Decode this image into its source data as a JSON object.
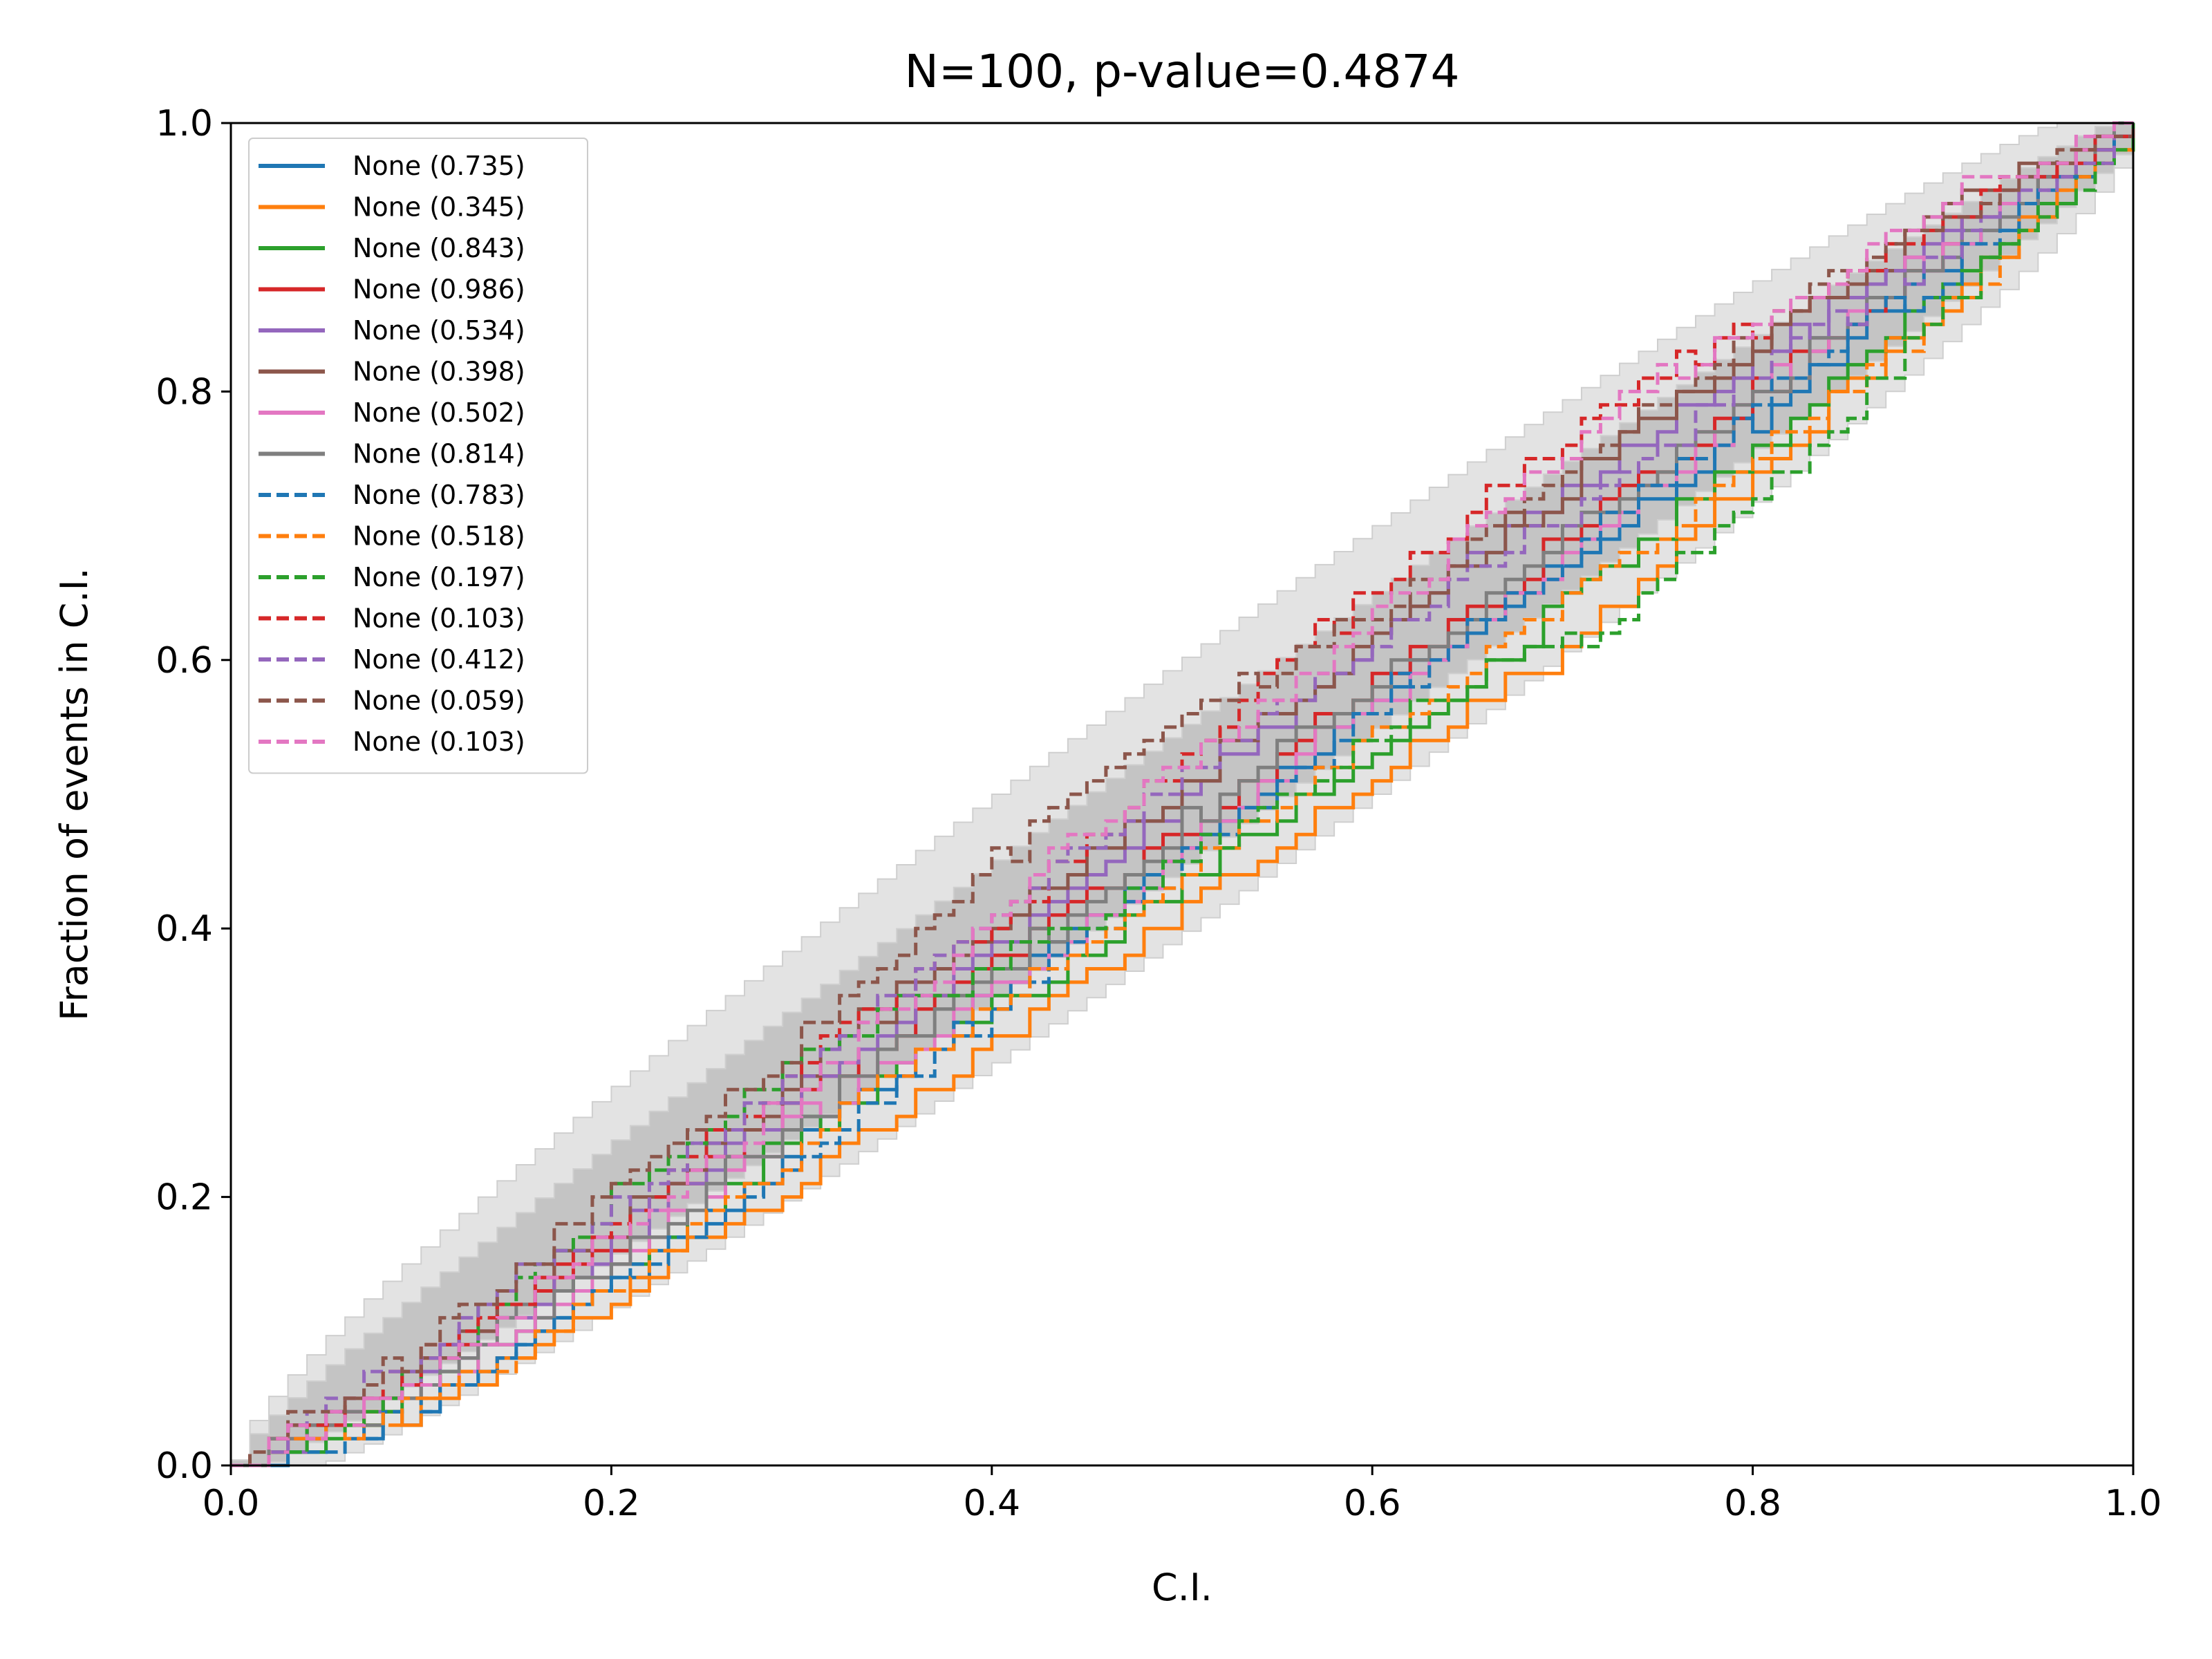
{
  "chart_data": {
    "type": "line",
    "title": "N=100, p-value=0.4874",
    "xlabel": "C.I.",
    "ylabel": "Fraction of events in C.I.",
    "xlim": [
      0,
      1
    ],
    "ylim": [
      0,
      1
    ],
    "xticks": [
      "0.0",
      "0.2",
      "0.4",
      "0.6",
      "0.8",
      "1.0"
    ],
    "yticks": [
      "0.0",
      "0.2",
      "0.4",
      "0.6",
      "0.8",
      "1.0"
    ],
    "grid": false,
    "legend_position": "top-left",
    "confidence_bands": [
      {
        "name": "1-sigma",
        "color": "#c4c4c4",
        "spread": 0.048
      },
      {
        "name": "2-sigma",
        "color": "#e3e3e3",
        "spread": 0.098
      }
    ],
    "series": [
      {
        "name": "None (0.735)",
        "color": "#1f77b4",
        "style": "solid",
        "seed": 11,
        "values": [
          0,
          0.04,
          0.12,
          0.21,
          0.31,
          0.41,
          0.51,
          0.61,
          0.7,
          0.8,
          0.91,
          1.0
        ]
      },
      {
        "name": "None (0.345)",
        "color": "#ff7f0e",
        "style": "solid",
        "seed": 23,
        "values": [
          0,
          0.04,
          0.11,
          0.19,
          0.28,
          0.37,
          0.46,
          0.55,
          0.64,
          0.76,
          0.88,
          1.0
        ]
      },
      {
        "name": "None (0.843)",
        "color": "#2ca02c",
        "style": "solid",
        "seed": 37,
        "values": [
          0,
          0.05,
          0.13,
          0.22,
          0.31,
          0.39,
          0.48,
          0.57,
          0.67,
          0.78,
          0.89,
          1.0
        ]
      },
      {
        "name": "None (0.986)",
        "color": "#d62728",
        "style": "solid",
        "seed": 41,
        "values": [
          0,
          0.06,
          0.15,
          0.25,
          0.34,
          0.43,
          0.52,
          0.62,
          0.72,
          0.82,
          0.92,
          1.0
        ]
      },
      {
        "name": "None (0.534)",
        "color": "#9467bd",
        "style": "solid",
        "seed": 53,
        "values": [
          0,
          0.06,
          0.15,
          0.25,
          0.35,
          0.45,
          0.55,
          0.66,
          0.75,
          0.84,
          0.93,
          1.0
        ]
      },
      {
        "name": "None (0.398)",
        "color": "#8c564b",
        "style": "solid",
        "seed": 67,
        "values": [
          0,
          0.07,
          0.16,
          0.26,
          0.37,
          0.46,
          0.56,
          0.66,
          0.76,
          0.85,
          0.94,
          1.0
        ]
      },
      {
        "name": "None (0.502)",
        "color": "#e377c2",
        "style": "solid",
        "seed": 71,
        "values": [
          0,
          0.05,
          0.13,
          0.23,
          0.32,
          0.41,
          0.51,
          0.61,
          0.71,
          0.82,
          0.92,
          1.0
        ]
      },
      {
        "name": "None (0.814)",
        "color": "#7f7f7f",
        "style": "solid",
        "seed": 83,
        "values": [
          0,
          0.05,
          0.14,
          0.23,
          0.33,
          0.43,
          0.53,
          0.62,
          0.72,
          0.82,
          0.91,
          1.0
        ]
      },
      {
        "name": "None (0.783)",
        "color": "#1f77b4",
        "style": "dashed",
        "seed": 97,
        "values": [
          0,
          0.04,
          0.12,
          0.21,
          0.3,
          0.4,
          0.5,
          0.61,
          0.71,
          0.81,
          0.9,
          1.0
        ]
      },
      {
        "name": "None (0.518)",
        "color": "#ff7f0e",
        "style": "dashed",
        "seed": 101,
        "values": [
          0,
          0.04,
          0.12,
          0.21,
          0.31,
          0.4,
          0.49,
          0.58,
          0.67,
          0.77,
          0.87,
          1.0
        ]
      },
      {
        "name": "None (0.197)",
        "color": "#2ca02c",
        "style": "dashed",
        "seed": 113,
        "values": [
          0,
          0.06,
          0.18,
          0.28,
          0.35,
          0.41,
          0.49,
          0.58,
          0.63,
          0.74,
          0.88,
          1.0
        ]
      },
      {
        "name": "None (0.103)",
        "color": "#d62728",
        "style": "dashed",
        "seed": 127,
        "values": [
          0,
          0.07,
          0.16,
          0.27,
          0.37,
          0.47,
          0.59,
          0.69,
          0.8,
          0.86,
          0.94,
          1.0
        ]
      },
      {
        "name": "None (0.412)",
        "color": "#9467bd",
        "style": "dashed",
        "seed": 131,
        "values": [
          0,
          0.08,
          0.17,
          0.27,
          0.37,
          0.47,
          0.56,
          0.65,
          0.74,
          0.83,
          0.92,
          1.0
        ]
      },
      {
        "name": "None (0.059)",
        "color": "#8c564b",
        "style": "dashed",
        "seed": 139,
        "values": [
          0,
          0.08,
          0.18,
          0.29,
          0.4,
          0.52,
          0.59,
          0.67,
          0.77,
          0.86,
          0.94,
          1.0
        ]
      },
      {
        "name": "None (0.103)",
        "color": "#e377c2",
        "style": "dashed",
        "seed": 149,
        "values": [
          0,
          0.06,
          0.15,
          0.25,
          0.36,
          0.48,
          0.57,
          0.68,
          0.79,
          0.87,
          0.95,
          1.0
        ]
      }
    ]
  }
}
